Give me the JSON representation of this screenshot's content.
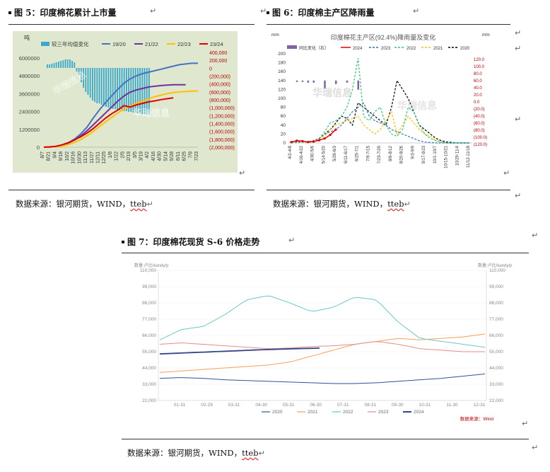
{
  "return_mark": "↵",
  "fig5": {
    "title": "图 5：印度棉花累计上市量",
    "unit": "吨",
    "legend": [
      "较三年均值变化",
      "19/20",
      "21/22",
      "22/23",
      "23/24"
    ],
    "left_ticks": [
      "6000000",
      "4800000",
      "3600000",
      "2400000",
      "1200000",
      "0"
    ],
    "right_ticks": [
      "400,000",
      "200,000",
      "0",
      "(200,000)",
      "(400,000)",
      "(600,000)",
      "(800,000)",
      "(1,000,000)",
      "(1,200,000)",
      "(1,400,000)",
      "(1,600,000)",
      "(1,800,000)",
      "(2,000,000)"
    ],
    "x_ticks": [
      "8/7",
      "8/21",
      "9/4",
      "9/18",
      "10/2",
      "10/16",
      "10/30",
      "11/13",
      "11/27",
      "12/11",
      "12/25",
      "1/8",
      "1/22",
      "2/5",
      "2/19",
      "3/5",
      "3/19",
      "4/2",
      "4/16",
      "4/30",
      "5/14",
      "5/28",
      "6/11",
      "6/25",
      "7/9",
      "7/23"
    ],
    "watermark": "华瑞信息",
    "colors": {
      "bg": "#dfe8cf",
      "diff": "#3aa8c8",
      "s1920": "#4472c4",
      "s2122": "#7030a0",
      "s2223": "#ffc000",
      "s2324": "#e00000"
    }
  },
  "fig6": {
    "title": "图 6：印度棉主产区降雨量",
    "chart_title": "印度棉花主产区(92.4%)降雨量及变化",
    "left_unit": "mm",
    "right_unit": "mm",
    "legend": [
      "同比变化（右）",
      "2024",
      "2023",
      "2022",
      "2021",
      "2020"
    ],
    "left_ticks": [
      "200",
      "180",
      "160",
      "140",
      "120",
      "100",
      "80",
      "60",
      "40",
      "20",
      "0"
    ],
    "right_ticks": [
      "120.0",
      "100.0",
      "80.0",
      "60.0",
      "40.0",
      "20.0",
      "0.0",
      "(20.0)",
      "(40.0)",
      "(60.0)",
      "(80.0)",
      "(100.0)",
      "(120.0)"
    ],
    "x_ticks": [
      "4/2-4/8",
      "4/16-4/22",
      "4/30-5/6",
      "5/14-5/20",
      "5/28-6/3",
      "6/11-6/17",
      "6/25-7/1",
      "7/9-7/15",
      "7/23-7/29",
      "8/6-8/12",
      "8/20-8/26",
      "9/3-9/9",
      "9/17-9/23",
      "10/1-10/7",
      "10/15-10/21",
      "10/29-11/4",
      "11/12-11/18"
    ],
    "watermark": "华瑞信息",
    "colors": {
      "bar": "#8064a2",
      "y2024": "#e00000",
      "y2023": "#2e75b6",
      "y2022": "#2ecc71",
      "y2021": "#ffc000",
      "y2020": "#000000"
    }
  },
  "fig7": {
    "title": "图 7：印度棉花现货 S-6 价格走势",
    "left_unit": "数量:卢比/kandy/p",
    "right_unit": "数量:卢比/kandy/p",
    "left_ticks": [
      "110,000",
      "99,000",
      "88,000",
      "77,000",
      "66,000",
      "55,000",
      "44,000",
      "33,000",
      "22,000"
    ],
    "right_ticks": [
      "110,000",
      "99,000",
      "88,000",
      "77,000",
      "66,000",
      "55,000",
      "44,000",
      "33,000",
      "22,000"
    ],
    "x_ticks": [
      "01-31",
      "02-29",
      "03-31",
      "04-30",
      "05-31",
      "06-30",
      "07-31",
      "08-31",
      "09-30",
      "10-31",
      "11-30",
      "12-31"
    ],
    "legend": [
      "2020",
      "2021",
      "2022",
      "2023",
      "2024"
    ],
    "source_note": "数据来源：Wind",
    "colors": {
      "y2020": "#2f5597",
      "y2021": "#f4a05a",
      "y2022": "#6fc6c6",
      "y2023": "#e88a8a",
      "y2024": "#334488"
    }
  },
  "source_line": {
    "prefix": "数据来源：银河期货，WIND，",
    "tail": "tteb"
  }
}
